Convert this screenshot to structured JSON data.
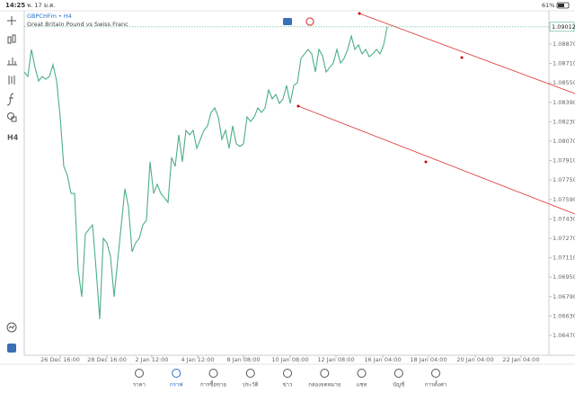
{
  "status_bar": {
    "time": "14:25",
    "date": "พ. 17 ม.ค.",
    "battery": "61%"
  },
  "left_toolbar": {
    "timeframe": "H4"
  },
  "chart_data": {
    "type": "line",
    "symbol": "GBPCHFm • H4",
    "subtitle": "Great Britain Pound vs Swiss Franc",
    "x": [
      0,
      1,
      2,
      3,
      4,
      5,
      6,
      7,
      8,
      9,
      10,
      11,
      12,
      13,
      14,
      15,
      16,
      17,
      18,
      19,
      20,
      21,
      22,
      23,
      24,
      25,
      26,
      27,
      28,
      29,
      30,
      31,
      32,
      33,
      34,
      35,
      36,
      37,
      38,
      39,
      40,
      41,
      42,
      43,
      44,
      45,
      46,
      47,
      48,
      49,
      50,
      51,
      52,
      53,
      54,
      55,
      56,
      57,
      58,
      59,
      60,
      61,
      62,
      63,
      64,
      65,
      66,
      67,
      68,
      69,
      70,
      71,
      72,
      73,
      74,
      75,
      76,
      77,
      78,
      79,
      80,
      81,
      82,
      83,
      84,
      85,
      86,
      87,
      88,
      89,
      90,
      91,
      92,
      93,
      94,
      95,
      96,
      97,
      98,
      99,
      100,
      101
    ],
    "series": [
      {
        "color": "#4caf85",
        "values": [
          1.0864,
          1.08603,
          1.08826,
          1.08677,
          1.08566,
          1.08603,
          1.08581,
          1.08603,
          1.087,
          1.08566,
          1.0827,
          1.07863,
          1.07789,
          1.0764,
          1.0764,
          1.07011,
          1.06789,
          1.07307,
          1.07344,
          1.07381,
          1.07011,
          1.06604,
          1.0727,
          1.07233,
          1.07122,
          1.06789,
          1.07085,
          1.07381,
          1.07678,
          1.07529,
          1.07159,
          1.07233,
          1.0727,
          1.07381,
          1.07418,
          1.079,
          1.0764,
          1.07715,
          1.0764,
          1.07603,
          1.07566,
          1.07937,
          1.07863,
          1.08122,
          1.079,
          1.08159,
          1.08122,
          1.08159,
          1.08011,
          1.08085,
          1.08159,
          1.08196,
          1.08307,
          1.08344,
          1.0827,
          1.08085,
          1.08159,
          1.08011,
          1.08196,
          1.08048,
          1.08026,
          1.08048,
          1.0827,
          1.08233,
          1.0827,
          1.08344,
          1.08307,
          1.08344,
          1.08492,
          1.08418,
          1.08455,
          1.08381,
          1.08418,
          1.08529,
          1.08381,
          1.08529,
          1.08552,
          1.08752,
          1.08789,
          1.08826,
          1.08789,
          1.0864,
          1.08826,
          1.08774,
          1.0864,
          1.08677,
          1.08714,
          1.08826,
          1.08714,
          1.08752,
          1.08826,
          1.08937,
          1.08826,
          1.08863,
          1.08789,
          1.08826,
          1.08766,
          1.08789,
          1.08826,
          1.08789,
          1.08863,
          1.09012
        ]
      }
    ],
    "xlim": [
      0,
      146
    ],
    "xticks": [
      {
        "value": 10,
        "label": "26 Dec 16:00"
      },
      {
        "value": 23,
        "label": "28 Dec 16:00"
      },
      {
        "value": 35.5,
        "label": "2 Jan 12:00"
      },
      {
        "value": 48.25,
        "label": "4 Jan 12:00"
      },
      {
        "value": 61,
        "label": "8 Jan 08:00"
      },
      {
        "value": 74,
        "label": "10 Jan 08:00"
      },
      {
        "value": 86.75,
        "label": "12 Jan 08:00"
      },
      {
        "value": 99.75,
        "label": "16 Jan 04:00"
      },
      {
        "value": 112.5,
        "label": "18 Jan 04:00"
      },
      {
        "value": 125.5,
        "label": "20 Jan 04:00"
      },
      {
        "value": 138.25,
        "label": "22 Jan 04:00"
      }
    ],
    "ylim": [
      1.06307,
      1.09144
    ],
    "yticks": [
      {
        "value": 1.0887,
        "label": "1.08870"
      },
      {
        "value": 1.0871,
        "label": "1.08710"
      },
      {
        "value": 1.0855,
        "label": "1.08550"
      },
      {
        "value": 1.0839,
        "label": "1.08390"
      },
      {
        "value": 1.0823,
        "label": "1.08230"
      },
      {
        "value": 1.0807,
        "label": "1.08070"
      },
      {
        "value": 1.0791,
        "label": "1.07910"
      },
      {
        "value": 1.0775,
        "label": "1.07750"
      },
      {
        "value": 1.0759,
        "label": "1.07590"
      },
      {
        "value": 1.0743,
        "label": "1.07430"
      },
      {
        "value": 1.0727,
        "label": "1.07270"
      },
      {
        "value": 1.0711,
        "label": "1.07110"
      },
      {
        "value": 1.0695,
        "label": "1.06950"
      },
      {
        "value": 1.0679,
        "label": "1.06790"
      },
      {
        "value": 1.0663,
        "label": "1.06630"
      },
      {
        "value": 1.0647,
        "label": "1.06470"
      }
    ],
    "last_price": 1.09012
  },
  "bottom_nav": {
    "items": [
      "ราคา",
      "กราฟ",
      "การซื้อขาย",
      "ประวัติ",
      "ข่าว",
      "กล่องจดหมาย",
      "แชท",
      "บัญชี",
      "การตั้งค่า"
    ]
  }
}
